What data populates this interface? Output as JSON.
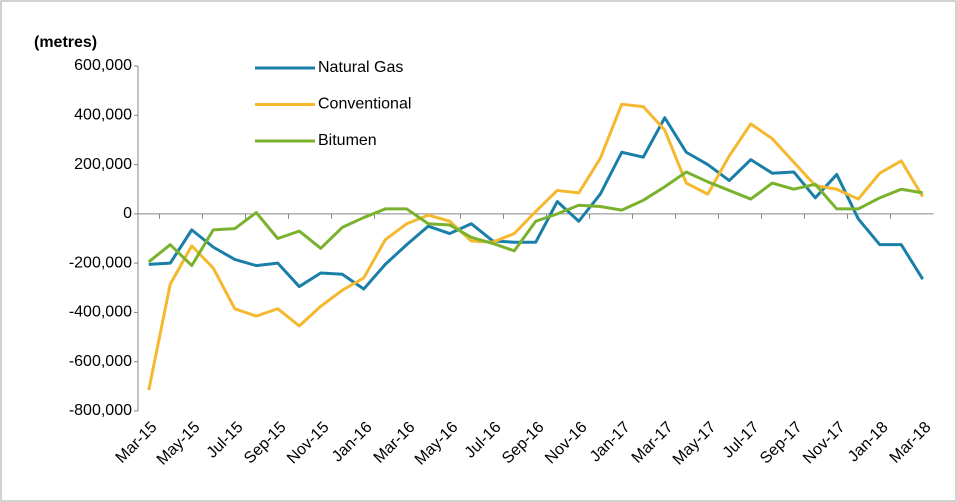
{
  "chart_data": {
    "type": "line",
    "y_label": "(metres)",
    "categories": [
      "Mar-15",
      null,
      "May-15",
      null,
      "Jul-15",
      null,
      "Sep-15",
      null,
      "Nov-15",
      null,
      "Jan-16",
      null,
      "Mar-16",
      null,
      "May-16",
      null,
      "Jul-16",
      null,
      "Sep-16",
      null,
      "Nov-16",
      null,
      "Jan-17",
      null,
      "Mar-17",
      null,
      "May-17",
      null,
      "Jul-17",
      null,
      "Sep-17",
      null,
      "Nov-17",
      null,
      "Jan-18",
      null,
      "Mar-18"
    ],
    "series": [
      {
        "name": "Natural Gas",
        "color": "#1a7fa8",
        "values": [
          -205000,
          -200000,
          -65000,
          -135000,
          -185000,
          -210000,
          -200000,
          -295000,
          -240000,
          -245000,
          -305000,
          -205000,
          -125000,
          -50000,
          -80000,
          -40000,
          -110000,
          -115000,
          -115000,
          50000,
          -30000,
          80000,
          250000,
          230000,
          390000,
          250000,
          200000,
          135000,
          220000,
          165000,
          170000,
          65000,
          160000,
          -20000,
          -125000,
          -125000,
          -265000
        ]
      },
      {
        "name": "Conventional",
        "color": "#f5b82e",
        "values": [
          -715000,
          -285000,
          -130000,
          -220000,
          -385000,
          -415000,
          -385000,
          -455000,
          -375000,
          -310000,
          -260000,
          -105000,
          -40000,
          -5000,
          -30000,
          -110000,
          -115000,
          -80000,
          10000,
          95000,
          85000,
          225000,
          445000,
          435000,
          340000,
          125000,
          80000,
          235000,
          365000,
          305000,
          210000,
          115000,
          100000,
          60000,
          165000,
          215000,
          70000
        ]
      },
      {
        "name": "Bitumen",
        "color": "#7ab22e",
        "values": [
          -195000,
          -125000,
          -210000,
          -65000,
          -60000,
          5000,
          -100000,
          -70000,
          -140000,
          -55000,
          -15000,
          20000,
          20000,
          -40000,
          -45000,
          -95000,
          -120000,
          -150000,
          -30000,
          0,
          35000,
          30000,
          15000,
          55000,
          110000,
          170000,
          130000,
          95000,
          60000,
          125000,
          100000,
          120000,
          20000,
          20000,
          65000,
          100000,
          85000
        ]
      }
    ],
    "ylim": [
      -800000,
      600000
    ],
    "yticks": [
      {
        "value": -800000,
        "label": "-800,000"
      },
      {
        "value": -600000,
        "label": "-600,000"
      },
      {
        "value": -400000,
        "label": "-400,000"
      },
      {
        "value": -200000,
        "label": "-200,000"
      },
      0,
      {
        "value": 200000,
        "label": "200,000"
      },
      {
        "value": 400000,
        "label": "400,000"
      },
      {
        "value": 600000,
        "label": "600,000"
      }
    ],
    "grid": false,
    "legend": "top-left"
  }
}
